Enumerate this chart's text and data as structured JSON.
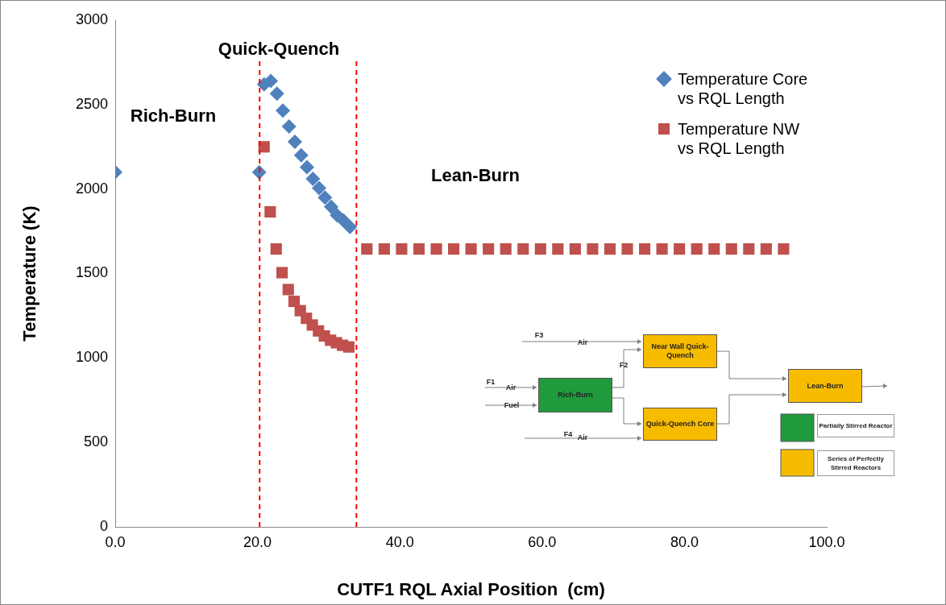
{
  "chart_data": {
    "type": "scatter",
    "xlabel": "CUTF1 RQL Axial Position  (cm)",
    "ylabel": "Temperature (K)",
    "xlim": [
      0,
      100
    ],
    "xticks": [
      {
        "value": 0,
        "label": "0.0"
      },
      {
        "value": 20,
        "label": "20.0"
      },
      {
        "value": 40,
        "label": "40.0"
      },
      {
        "value": 60,
        "label": "60.0"
      },
      {
        "value": 80,
        "label": "80.0"
      },
      {
        "value": 100,
        "label": "100.0"
      }
    ],
    "ylim": [
      0,
      3000
    ],
    "yticks": [
      0,
      500,
      1000,
      1500,
      2000,
      2500,
      3000
    ],
    "grid": false,
    "legend": "top right",
    "series": [
      {
        "name": "Temperature Core vs RQL Length",
        "color": "#4f81bd",
        "marker": "diamond",
        "x": [
          0,
          20.24,
          20.92,
          21.86,
          22.73,
          23.56,
          24.43,
          25.25,
          26.13,
          26.95,
          27.78,
          28.65,
          29.48,
          30.35,
          31.18,
          32.05,
          32.99
        ],
        "values": [
          2100,
          2100,
          2620,
          2640,
          2565,
          2465,
          2370,
          2280,
          2200,
          2130,
          2060,
          2005,
          1950,
          1895,
          1845,
          1815,
          1775
        ]
      },
      {
        "name": "Temperature NW vs RQL Length",
        "color": "#c0504d",
        "marker": "square",
        "x": [
          20.92,
          21.78,
          22.62,
          23.45,
          24.32,
          25.14,
          26.01,
          26.87,
          27.7,
          28.57,
          29.39,
          30.26,
          31.09,
          31.95,
          32.83,
          35.37,
          37.81,
          40.25,
          42.69,
          45.13,
          47.57,
          50.01,
          52.45,
          54.89,
          57.33,
          59.77,
          62.21,
          64.65,
          67.09,
          69.53,
          71.97,
          74.41,
          76.85,
          79.29,
          81.73,
          84.17,
          86.61,
          89.05,
          91.49,
          93.93
        ],
        "values": [
          2250,
          1865,
          1645,
          1505,
          1405,
          1335,
          1280,
          1235,
          1195,
          1160,
          1130,
          1105,
          1090,
          1075,
          1065,
          1645,
          1645,
          1645,
          1645,
          1645,
          1645,
          1645,
          1645,
          1645,
          1645,
          1645,
          1645,
          1645,
          1645,
          1645,
          1645,
          1645,
          1645,
          1645,
          1645,
          1645,
          1645,
          1645,
          1645,
          1645
        ]
      }
    ],
    "ref_lines": [
      {
        "axis": "x",
        "value": 20.3,
        "color": "#ff0000",
        "line_style": "dashed"
      },
      {
        "axis": "x",
        "value": 33.9,
        "color": "#ff0000",
        "line_style": "dashed"
      }
    ],
    "annotations": [
      "Rich-Burn",
      "Quick-Quench",
      "Lean-Burn",
      "F3",
      "Air",
      "Near Wall Quick-Quench",
      "F2",
      "F1",
      "Air",
      "Fuel",
      "Rich-Burn",
      "Quick-Quench Core",
      "F4",
      "Air",
      "Lean-Burn",
      "Partially Stirred Reactor",
      "Series of Perfectly Stirred Reactors"
    ]
  }
}
